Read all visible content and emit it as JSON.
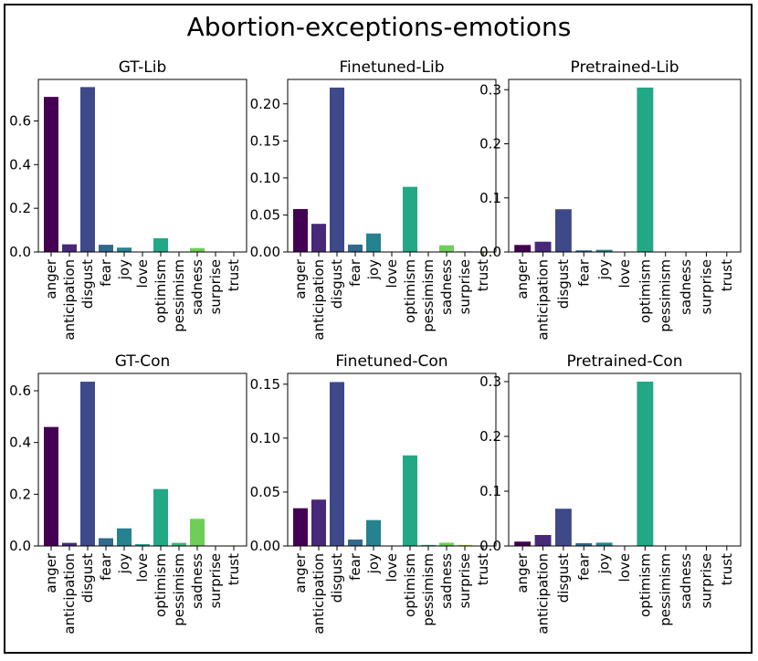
{
  "title": "Abortion-exceptions-emotions",
  "chart_data": [
    {
      "type": "bar",
      "title": "GT-Lib",
      "categories": [
        "anger",
        "anticipation",
        "disgust",
        "fear",
        "joy",
        "love",
        "optimism",
        "pessimism",
        "sadness",
        "surprise",
        "trust"
      ],
      "values": [
        0.71,
        0.035,
        0.755,
        0.033,
        0.02,
        0.0,
        0.063,
        0.0,
        0.018,
        0.0,
        0.0
      ],
      "ylim": [
        0,
        0.79
      ],
      "yticks": [
        0.0,
        0.2,
        0.4,
        0.6
      ],
      "ytick_labels": [
        "0.0",
        "0.2",
        "0.4",
        "0.6"
      ]
    },
    {
      "type": "bar",
      "title": "Finetuned-Lib",
      "categories": [
        "anger",
        "anticipation",
        "disgust",
        "fear",
        "joy",
        "love",
        "optimism",
        "pessimism",
        "sadness",
        "surprise",
        "trust"
      ],
      "values": [
        0.058,
        0.038,
        0.222,
        0.01,
        0.025,
        0.0,
        0.088,
        0.0,
        0.009,
        0.001,
        0.001
      ],
      "ylim": [
        0,
        0.233
      ],
      "yticks": [
        0.0,
        0.05,
        0.1,
        0.15,
        0.2
      ],
      "ytick_labels": [
        "0.00",
        "0.05",
        "0.10",
        "0.15",
        "0.20"
      ]
    },
    {
      "type": "bar",
      "title": "Pretrained-Lib",
      "categories": [
        "anger",
        "anticipation",
        "disgust",
        "fear",
        "joy",
        "love",
        "optimism",
        "pessimism",
        "sadness",
        "surprise",
        "trust"
      ],
      "values": [
        0.013,
        0.019,
        0.079,
        0.003,
        0.004,
        0.0,
        0.304,
        0.0,
        0.0,
        0.0,
        0.0
      ],
      "ylim": [
        0,
        0.319
      ],
      "yticks": [
        0.0,
        0.1,
        0.2,
        0.3
      ],
      "ytick_labels": [
        "0.0",
        "0.1",
        "0.2",
        "0.3"
      ]
    },
    {
      "type": "bar",
      "title": "GT-Con",
      "categories": [
        "anger",
        "anticipation",
        "disgust",
        "fear",
        "joy",
        "love",
        "optimism",
        "pessimism",
        "sadness",
        "surprise",
        "trust"
      ],
      "values": [
        0.46,
        0.012,
        0.635,
        0.03,
        0.068,
        0.007,
        0.22,
        0.012,
        0.105,
        0.0,
        0.002
      ],
      "ylim": [
        0,
        0.667
      ],
      "yticks": [
        0.0,
        0.2,
        0.4,
        0.6
      ],
      "ytick_labels": [
        "0.0",
        "0.2",
        "0.4",
        "0.6"
      ]
    },
    {
      "type": "bar",
      "title": "Finetuned-Con",
      "categories": [
        "anger",
        "anticipation",
        "disgust",
        "fear",
        "joy",
        "love",
        "optimism",
        "pessimism",
        "sadness",
        "surprise",
        "trust"
      ],
      "values": [
        0.035,
        0.043,
        0.152,
        0.006,
        0.024,
        0.0,
        0.084,
        0.001,
        0.003,
        0.001,
        0.0
      ],
      "ylim": [
        0,
        0.16
      ],
      "yticks": [
        0.0,
        0.05,
        0.1,
        0.15
      ],
      "ytick_labels": [
        "0.00",
        "0.05",
        "0.10",
        "0.15"
      ]
    },
    {
      "type": "bar",
      "title": "Pretrained-Con",
      "categories": [
        "anger",
        "anticipation",
        "disgust",
        "fear",
        "joy",
        "love",
        "optimism",
        "pessimism",
        "sadness",
        "surprise",
        "trust"
      ],
      "values": [
        0.008,
        0.02,
        0.068,
        0.005,
        0.006,
        0.0,
        0.3,
        0.0,
        0.0,
        0.0,
        0.0
      ],
      "ylim": [
        0,
        0.315
      ],
      "yticks": [
        0.0,
        0.1,
        0.2,
        0.3
      ],
      "ytick_labels": [
        "0.0",
        "0.1",
        "0.2",
        "0.3"
      ]
    }
  ],
  "colors": [
    "#440154",
    "#482878",
    "#3e4989",
    "#31688e",
    "#26828e",
    "#1f9e89",
    "#22a884",
    "#35b779",
    "#6ece58",
    "#b5de2b",
    "#fde725"
  ]
}
